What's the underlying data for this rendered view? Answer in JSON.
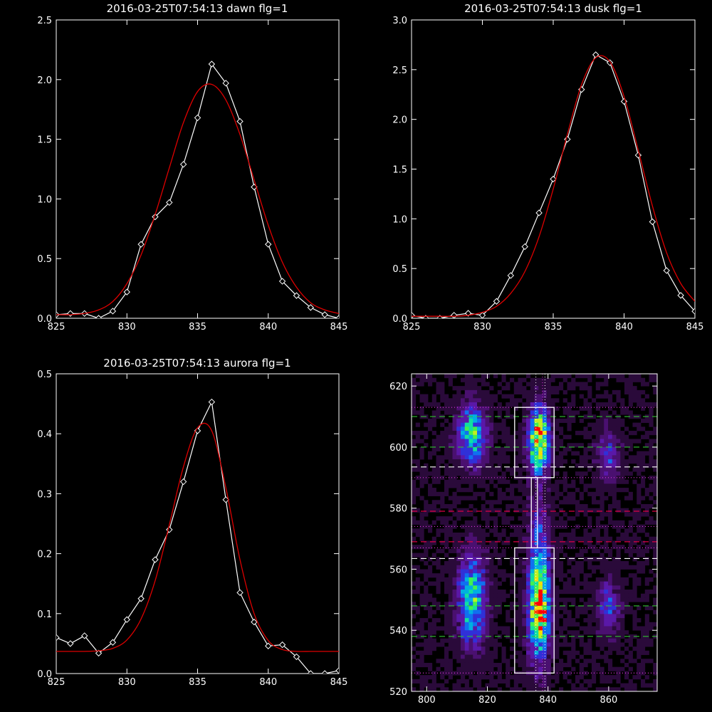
{
  "chart_data": [
    {
      "type": "line",
      "title": "2016-03-25T07:54:13 dawn flg=1",
      "xlim": [
        825,
        845
      ],
      "ylim": [
        0,
        2.5
      ],
      "xticks": [
        825,
        830,
        835,
        840,
        845
      ],
      "yticks": [
        0.0,
        0.5,
        1.0,
        1.5,
        2.0,
        2.5
      ],
      "ytick_decimals": 1,
      "series": [
        {
          "color": "#ffffff",
          "marker": "diamond",
          "x": [
            825,
            826,
            827,
            828,
            829,
            830,
            831,
            832,
            833,
            834,
            835,
            836,
            837,
            838,
            839,
            840,
            841,
            842,
            843,
            844,
            845
          ],
          "y": [
            0.03,
            0.04,
            0.04,
            0.0,
            0.06,
            0.22,
            0.62,
            0.85,
            0.97,
            1.29,
            1.68,
            2.13,
            1.97,
            1.65,
            1.1,
            0.62,
            0.31,
            0.19,
            0.09,
            0.03,
            0.0
          ]
        },
        {
          "color": "#dd0000",
          "marker": "none",
          "x": [
            825,
            826,
            827,
            828,
            829,
            830,
            831,
            832,
            833,
            834,
            835,
            836,
            837,
            838,
            839,
            840,
            841,
            842,
            843,
            844,
            845
          ],
          "y": [
            0.03,
            0.03,
            0.04,
            0.07,
            0.14,
            0.29,
            0.53,
            0.87,
            1.26,
            1.64,
            1.9,
            1.96,
            1.83,
            1.54,
            1.16,
            0.78,
            0.47,
            0.26,
            0.13,
            0.07,
            0.04
          ]
        }
      ]
    },
    {
      "type": "line",
      "title": "2016-03-25T07:54:13 dusk flg=1",
      "xlim": [
        825,
        845
      ],
      "ylim": [
        0,
        3.0
      ],
      "xticks": [
        825,
        830,
        835,
        840,
        845
      ],
      "yticks": [
        0.0,
        0.5,
        1.0,
        1.5,
        2.0,
        2.5,
        3.0
      ],
      "ytick_decimals": 1,
      "series": [
        {
          "color": "#ffffff",
          "marker": "diamond",
          "x": [
            825,
            826,
            827,
            828,
            829,
            830,
            831,
            832,
            833,
            834,
            835,
            836,
            837,
            838,
            839,
            840,
            841,
            842,
            843,
            844,
            845
          ],
          "y": [
            0.03,
            0.0,
            0.0,
            0.03,
            0.05,
            0.03,
            0.17,
            0.43,
            0.72,
            1.06,
            1.4,
            1.8,
            2.3,
            2.65,
            2.57,
            2.18,
            1.64,
            0.97,
            0.48,
            0.23,
            0.07
          ]
        },
        {
          "color": "#dd0000",
          "marker": "none",
          "x": [
            825,
            826,
            827,
            828,
            829,
            830,
            831,
            832,
            833,
            834,
            835,
            836,
            837,
            838,
            839,
            840,
            841,
            842,
            843,
            844,
            845
          ],
          "y": [
            0.02,
            0.02,
            0.02,
            0.02,
            0.03,
            0.06,
            0.12,
            0.25,
            0.47,
            0.82,
            1.3,
            1.85,
            2.35,
            2.62,
            2.58,
            2.23,
            1.69,
            1.13,
            0.66,
            0.35,
            0.17
          ]
        }
      ]
    },
    {
      "type": "line",
      "title": "2016-03-25T07:54:13 aurora flg=1",
      "xlim": [
        825,
        845
      ],
      "ylim": [
        0,
        0.5
      ],
      "xticks": [
        825,
        830,
        835,
        840,
        845
      ],
      "yticks": [
        0.0,
        0.1,
        0.2,
        0.3,
        0.4,
        0.5
      ],
      "ytick_decimals": 1,
      "series": [
        {
          "color": "#ffffff",
          "marker": "diamond",
          "x": [
            825,
            826,
            827,
            828,
            829,
            830,
            831,
            832,
            833,
            834,
            835,
            836,
            837,
            838,
            839,
            840,
            841,
            842,
            843,
            844,
            845
          ],
          "y": [
            0.06,
            0.05,
            0.063,
            0.034,
            0.052,
            0.09,
            0.125,
            0.19,
            0.24,
            0.32,
            0.405,
            0.453,
            0.29,
            0.135,
            0.086,
            0.046,
            0.048,
            0.028,
            0.0,
            0.0,
            0.005
          ]
        },
        {
          "color": "#dd0000",
          "marker": "none",
          "x": [
            825,
            826,
            827,
            828,
            829,
            830,
            831,
            832,
            833,
            834,
            835,
            836,
            837,
            838,
            839,
            840,
            841,
            842,
            843,
            844,
            845
          ],
          "y": [
            0.037,
            0.037,
            0.037,
            0.038,
            0.042,
            0.056,
            0.091,
            0.155,
            0.248,
            0.345,
            0.41,
            0.405,
            0.31,
            0.19,
            0.1,
            0.055,
            0.04,
            0.037,
            0.037,
            0.037,
            0.037
          ]
        }
      ]
    },
    {
      "type": "heatmap",
      "title": "",
      "xlim": [
        795,
        876
      ],
      "ylim": [
        520,
        624
      ],
      "xticks": [
        800,
        820,
        840,
        860
      ],
      "yticks": [
        520,
        540,
        560,
        580,
        600,
        620
      ],
      "colormap": [
        "#000000",
        "#2a0a3a",
        "#4a1070",
        "#5a18a8",
        "#3030d8",
        "#1070f0",
        "#00b0e0",
        "#10e0a0",
        "#40f050",
        "#c0f020",
        "#f0e000",
        "#ff4000",
        "#ff0000"
      ],
      "intensity_blobs": [
        {
          "x": 815,
          "y": 604,
          "sx": 3.2,
          "sy": 6.5,
          "amp": 0.55
        },
        {
          "x": 837,
          "y": 602,
          "sx": 2.4,
          "sy": 7.5,
          "amp": 0.75
        },
        {
          "x": 837,
          "y": 606,
          "sx": 1.2,
          "sy": 1.5,
          "amp": 0.35
        },
        {
          "x": 860,
          "y": 598,
          "sx": 2.6,
          "sy": 6.0,
          "amp": 0.25
        },
        {
          "x": 815,
          "y": 550,
          "sx": 3.2,
          "sy": 10.0,
          "amp": 0.55
        },
        {
          "x": 837,
          "y": 550,
          "sx": 2.4,
          "sy": 13.0,
          "amp": 0.82
        },
        {
          "x": 838,
          "y": 545,
          "sx": 1.6,
          "sy": 3.0,
          "amp": 0.3
        },
        {
          "x": 860,
          "y": 548,
          "sx": 2.6,
          "sy": 6.0,
          "amp": 0.28
        },
        {
          "x": 837,
          "y": 576,
          "sx": 2.6,
          "sy": 5.0,
          "amp": 0.12
        }
      ],
      "hot_pixels": [
        {
          "x": 836.5,
          "y": 606,
          "color": "#ff0000"
        },
        {
          "x": 837.5,
          "y": 544,
          "color": "#ff0000"
        }
      ],
      "boxes": [
        {
          "x0": 829,
          "x1": 842,
          "y0": 590,
          "y1": 613,
          "color": "#ffffff"
        },
        {
          "x0": 829,
          "x1": 842,
          "y0": 526,
          "y1": 567,
          "color": "#ffffff"
        },
        {
          "x0": 834.5,
          "x1": 836.5,
          "y0": 567,
          "y1": 590,
          "color": "#ffffff"
        }
      ],
      "hlines": [
        {
          "y": 613,
          "color": "#dd33dd",
          "style": "dotted"
        },
        {
          "y": 610,
          "color": "#30c030",
          "style": "dashed"
        },
        {
          "y": 600,
          "color": "#30c030",
          "style": "dashed"
        },
        {
          "y": 593.5,
          "color": "#ffffff",
          "style": "dashed"
        },
        {
          "y": 590,
          "color": "#dd33dd",
          "style": "dotted"
        },
        {
          "y": 579,
          "color": "#dd0044",
          "style": "dashed"
        },
        {
          "y": 574,
          "color": "#dd33dd",
          "style": "dotted"
        },
        {
          "y": 569,
          "color": "#dd0044",
          "style": "dashed"
        },
        {
          "y": 567,
          "color": "#dd33dd",
          "style": "dotted"
        },
        {
          "y": 563.5,
          "color": "#ffffff",
          "style": "dashed"
        },
        {
          "y": 548,
          "color": "#30c030",
          "style": "dashed"
        },
        {
          "y": 538,
          "color": "#30c030",
          "style": "dashed"
        },
        {
          "y": 526,
          "color": "#dd33dd",
          "style": "dotted"
        }
      ],
      "vlines": [
        {
          "x": 836,
          "color": "#ffffff",
          "style": "dotted"
        },
        {
          "x": 838.2,
          "color": "#dd33dd",
          "style": "dotted"
        },
        {
          "x": 839,
          "color": "#ffffff",
          "style": "dotted"
        }
      ]
    }
  ]
}
